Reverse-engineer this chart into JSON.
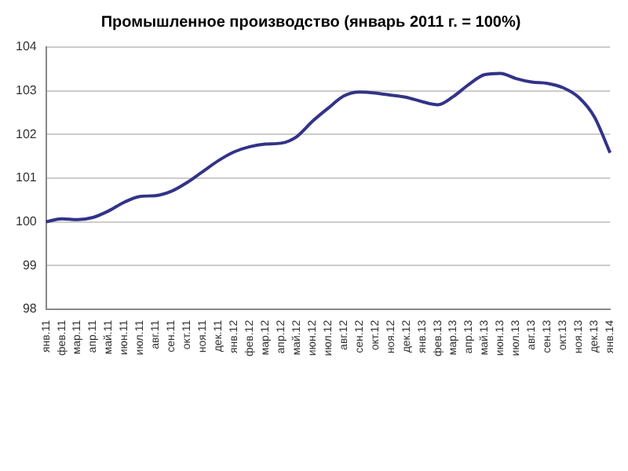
{
  "chart_data": {
    "type": "line",
    "title": "Промышленное производство (январь 2011 г. = 100%)",
    "categories": [
      "янв.11",
      "фев.11",
      "мар.11",
      "апр.11",
      "май.11",
      "июн.11",
      "июл.11",
      "авг.11",
      "сен.11",
      "окт.11",
      "ноя.11",
      "дек.11",
      "янв.12",
      "фев.12",
      "мар.12",
      "апр.12",
      "май.12",
      "июн.12",
      "июл.12",
      "авг.12",
      "сен.12",
      "окт.12",
      "ноя.12",
      "дек.12",
      "янв.13",
      "фев.13",
      "мар.13",
      "апр.13",
      "май.13",
      "июн.13",
      "июл.13",
      "авг.13",
      "сен.13",
      "окт.13",
      "ноя.13",
      "дек.13",
      "янв.14"
    ],
    "series": [
      {
        "color": "#333388",
        "values": [
          100.0,
          100.07,
          100.05,
          100.1,
          100.25,
          100.45,
          100.58,
          100.6,
          100.7,
          100.9,
          101.15,
          101.4,
          101.6,
          101.72,
          101.78,
          101.8,
          101.95,
          102.3,
          102.6,
          102.88,
          102.97,
          102.95,
          102.9,
          102.85,
          102.75,
          102.68,
          102.87,
          103.15,
          103.37,
          103.4,
          103.28,
          103.2,
          103.17,
          103.07,
          102.85,
          102.4,
          101.58
        ]
      }
    ],
    "ylim": [
      98,
      104
    ],
    "yticks": [
      98,
      99,
      100,
      101,
      102,
      103,
      104
    ],
    "grid": "y",
    "legend": false,
    "marker": "none",
    "line_style": "solid"
  }
}
